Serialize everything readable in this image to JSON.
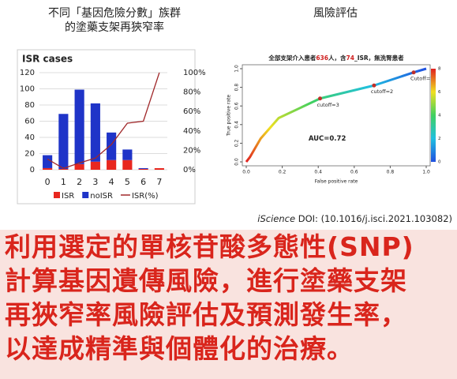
{
  "header": {
    "left_title": [
      "不同「基因危險分數」族群",
      "的塗藥支架再狹窄率"
    ],
    "right_title": "風險評估"
  },
  "citation": {
    "journal": "iScience",
    "doi": "DOI: (10.1016/j.isci.2021.103082)"
  },
  "summary": [
    "利用選定的單核苷酸多態性(SNP)",
    "計算基因遺傳風險，進行塗藥支架",
    "再狹窄率風險評估及預測發生率，",
    "以達成精準與個體化的治療。"
  ],
  "chart_data": [
    {
      "type": "bar",
      "stacked": true,
      "title": "ISR cases",
      "categories": [
        "0",
        "1",
        "2",
        "3",
        "4",
        "5",
        "6",
        "7"
      ],
      "series": [
        {
          "name": "ISR",
          "color": "#e8271f",
          "values": [
            2,
            1,
            7,
            10,
            12,
            12,
            1,
            2
          ]
        },
        {
          "name": "noISR",
          "color": "#1f34c8",
          "values": [
            16,
            68,
            92,
            72,
            34,
            13,
            1,
            0
          ]
        },
        {
          "name": "ISR(%)",
          "type": "line",
          "axis": "y2",
          "color": "#a0282a",
          "values": [
            11,
            1.4,
            7,
            12,
            26,
            48,
            50,
            100
          ]
        }
      ],
      "ylim": [
        0,
        120
      ],
      "yticks": [
        0,
        20,
        40,
        60,
        80,
        100,
        120
      ],
      "y2lim": [
        0,
        100
      ],
      "y2ticks": [
        {
          "value": 0,
          "label": "0%"
        },
        {
          "value": 20,
          "label": "20%"
        },
        {
          "value": 40,
          "label": "40%"
        },
        {
          "value": 60,
          "label": "60%"
        },
        {
          "value": 80,
          "label": "80%"
        },
        {
          "value": 100,
          "label": "100%"
        }
      ],
      "grid": true,
      "legend": "bottom"
    },
    {
      "type": "line",
      "title": [
        "全部支架介入患者",
        "636",
        "人，含",
        "74",
        "_ISR，無洗腎患者"
      ],
      "x_label": "False positive rate",
      "y_label": "True positive rate",
      "x": [
        0,
        0.02,
        0.08,
        0.18,
        0.41,
        0.71,
        0.93,
        1
      ],
      "values": [
        0,
        0.05,
        0.25,
        0.47,
        0.68,
        0.82,
        0.96,
        1
      ],
      "xlim": [
        0,
        1
      ],
      "ylim": [
        0,
        1
      ],
      "xticks": [
        {
          "value": 0,
          "label": "0.0"
        },
        {
          "value": 0.2,
          "label": "0.2"
        },
        {
          "value": 0.4,
          "label": "0.4"
        },
        {
          "value": 0.6,
          "label": "0.6"
        },
        {
          "value": 0.8,
          "label": "0.8"
        },
        {
          "value": 1,
          "label": "1.0"
        }
      ],
      "yticks": [
        {
          "value": 0,
          "label": "0.0"
        },
        {
          "value": 0.2,
          "label": "0.2"
        },
        {
          "value": 0.4,
          "label": "0.4"
        },
        {
          "value": 0.6,
          "label": "0.6"
        },
        {
          "value": 0.8,
          "label": "0.8"
        },
        {
          "value": 1,
          "label": "1.0"
        }
      ],
      "colorbar_lim": [
        0,
        8
      ],
      "colorbar_ticks": [
        0,
        2,
        4,
        6,
        8
      ],
      "cutoffs": [
        {
          "label": "cutoff=3",
          "index": 4
        },
        {
          "label": "cutoff=2",
          "index": 5
        },
        {
          "label": "Cutoff=1",
          "index": 6
        }
      ],
      "annotation": "AUC=0.72",
      "marker_color": "#c0302a"
    }
  ]
}
